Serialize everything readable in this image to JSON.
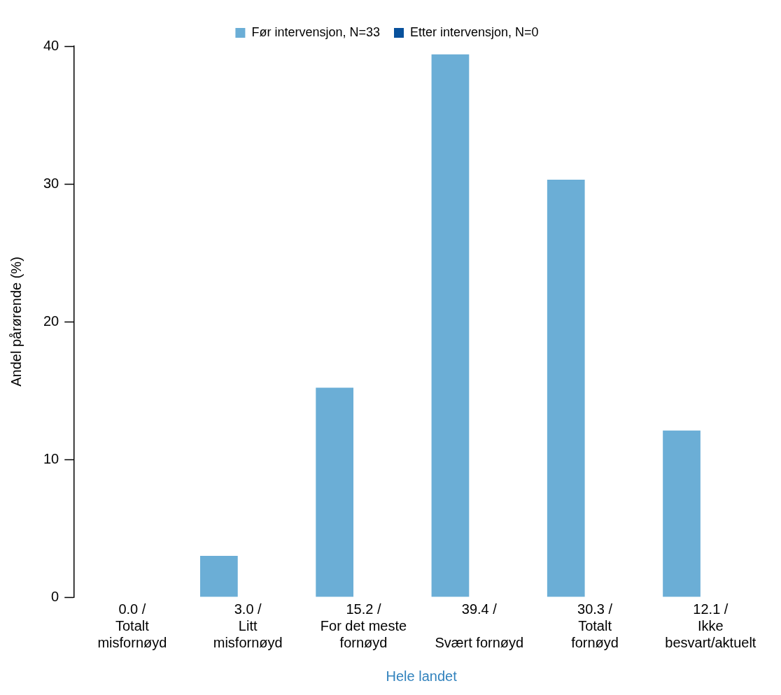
{
  "chart_data": {
    "type": "bar",
    "xlabel": "Hele landet",
    "ylabel": "Andel pårørende (%)",
    "categories": [
      "0.0 /\nTotalt\nmisfornøyd",
      "3.0 /\nLitt\nmisfornøyd",
      "15.2 /\nFor det meste\nfornøyd",
      "39.4 /\n\nSvært fornøyd",
      "30.3 /\nTotalt\nfornøyd",
      "12.1 /\nIkke\nbesvart/aktuelt"
    ],
    "series": [
      {
        "name": "Før intervensjon, N=33",
        "color": "#6baed6",
        "values": [
          0.0,
          3.0,
          15.2,
          39.4,
          30.3,
          12.1
        ]
      },
      {
        "name": "Etter intervensjon, N=0",
        "color": "#08519c",
        "values": [
          null,
          null,
          null,
          null,
          null,
          null
        ]
      }
    ],
    "ylim": [
      0,
      40
    ],
    "yticks": [
      0,
      10,
      20,
      30,
      40
    ],
    "grid": false,
    "legend": "top"
  }
}
